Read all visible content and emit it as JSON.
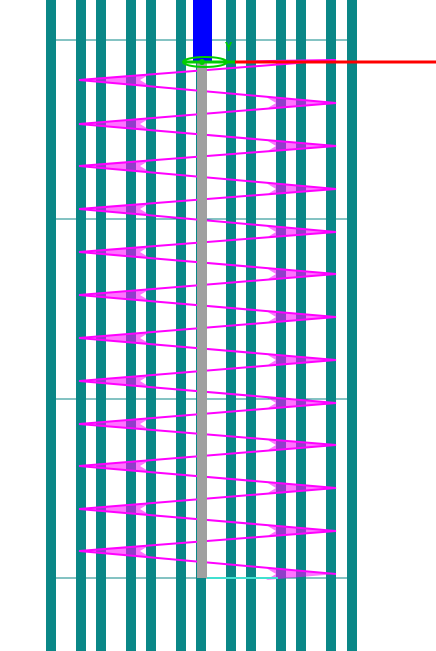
{
  "viewport": {
    "description_label": "3D viewport",
    "background": "#ffffff"
  },
  "axes": {
    "y_label": "Y",
    "x_color": "#ff0000",
    "y_color": "#00cc00",
    "z_color": "#0000ff"
  },
  "colors": {
    "bars": "#0a8787",
    "grid_lines": "#0a8787",
    "spring": "#ff00ff",
    "shaft": "#a0a0a0",
    "base_line": "#40e0d0"
  },
  "icons": {
    "origin_gizmo": "axis-gizmo-icon"
  }
}
